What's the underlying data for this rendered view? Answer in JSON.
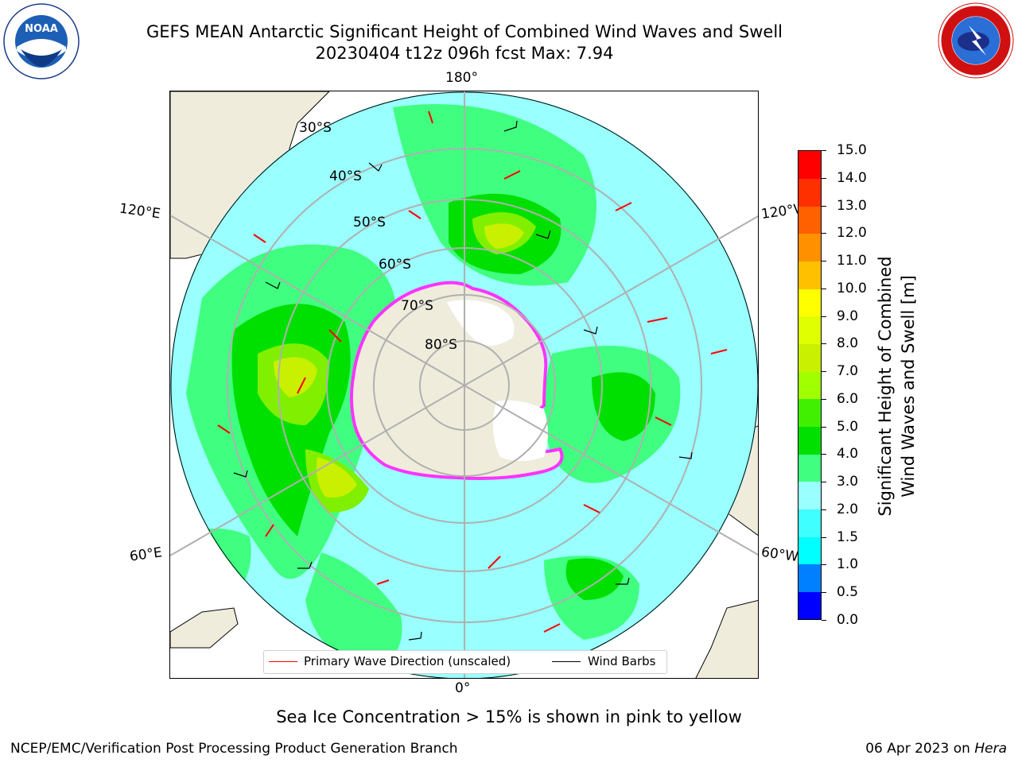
{
  "title": {
    "line1": "GEFS MEAN Antarctic Significant Height of Combined Wind Waves and Swell",
    "line2": "20230404 t12z 096h fcst   Max: 7.94"
  },
  "logos": {
    "left": "noaa-logo",
    "right": "national-weather-service-logo"
  },
  "map": {
    "projection": "south-polar-stereographic",
    "longitude_labels": {
      "top": "180°",
      "bottom": "0°",
      "left_upper": "120°E",
      "left_lower": "60°E",
      "right_upper": "120°W",
      "right_lower": "60°W"
    },
    "latitude_labels": [
      "30°S",
      "40°S",
      "50°S",
      "60°S",
      "70°S",
      "80°S"
    ],
    "sea_ice_colors": [
      "#ff00ff",
      "#ff99ff",
      "#ffcc00"
    ],
    "land_color": "#efecdc",
    "ice_sheet_color": "#ffffff"
  },
  "legend": {
    "items": [
      {
        "label": "Primary Wave Direction (unscaled)",
        "color": "#ff0000"
      },
      {
        "label": "Wind Barbs",
        "color": "#000000"
      }
    ]
  },
  "colorbar": {
    "label_line1": "Significant Height of Combined",
    "label_line2": "Wind Waves and Swell [m]",
    "ticks": [
      "0.0",
      "0.5",
      "1.0",
      "1.5",
      "2.0",
      "3.0",
      "4.0",
      "5.0",
      "6.0",
      "7.0",
      "8.0",
      "9.0",
      "10.0",
      "11.0",
      "12.0",
      "13.0",
      "14.0",
      "15.0"
    ],
    "colors": [
      "#0000ff",
      "#0080ff",
      "#00ffff",
      "#40ffff",
      "#99ffff",
      "#40ff80",
      "#00e000",
      "#40f000",
      "#a0ff00",
      "#c8f000",
      "#e0ff00",
      "#ffff00",
      "#ffc000",
      "#ff9000",
      "#ff6000",
      "#ff3000",
      "#ff0000"
    ]
  },
  "caption": "Sea Ice Concentration > 15% is shown in pink to yellow",
  "footer": {
    "left": "NCEP/EMC/Verification Post Processing Product Generation Branch",
    "right_date": "06 Apr 2023 on",
    "right_machine": "Hera"
  }
}
